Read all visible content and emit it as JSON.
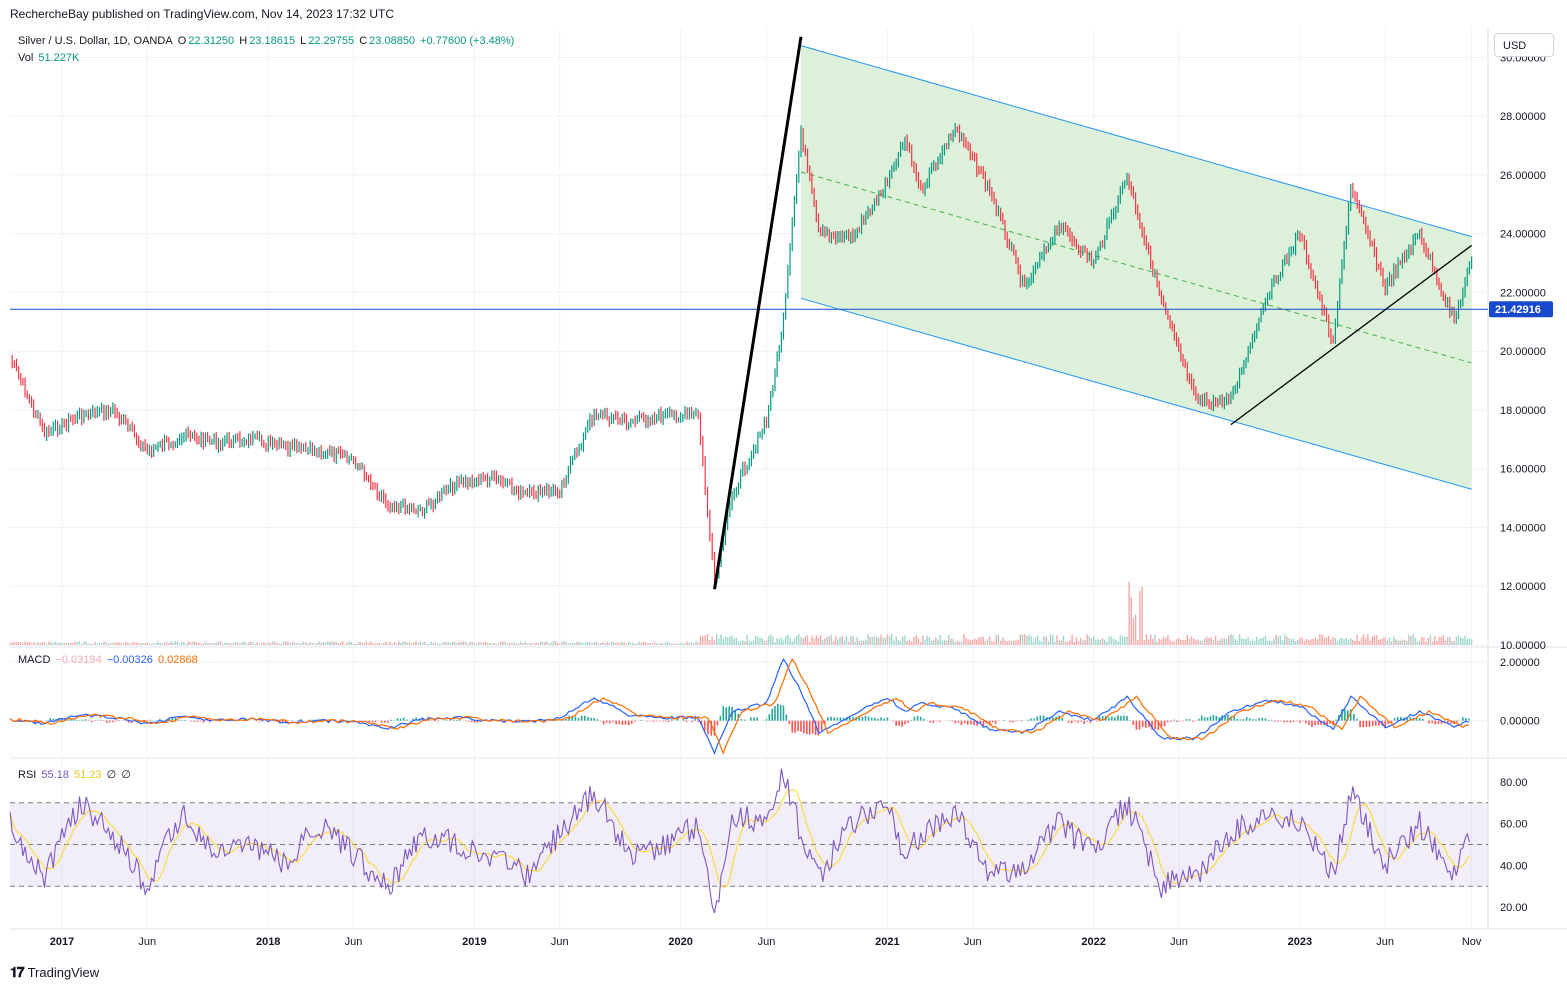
{
  "header": {
    "published": "RechercheBay published on TradingView.com, Nov 14, 2023 17:32 UTC"
  },
  "legend": {
    "symbol": "Silver / U.S. Dollar, 1D, OANDA",
    "o_label": "O",
    "o_value": "22.31250",
    "h_label": "H",
    "h_value": "23.18615",
    "l_label": "L",
    "l_value": "22.29755",
    "c_label": "C",
    "c_value": "23.08850",
    "change": "+0.77600 (+3.48%)",
    "vol_label": "Vol",
    "vol_value": "51.227K"
  },
  "macd_legend": {
    "label": "MACD",
    "v1": "−0.03194",
    "v2": "−0.00326",
    "v3": "0.02868"
  },
  "rsi_legend": {
    "label": "RSI",
    "v1": "55.18",
    "v2": "51.23",
    "v3": "∅",
    "v4": "∅"
  },
  "currency_button": "USD",
  "last_price_tag": "21.42916",
  "brand": "TradingView",
  "colors": {
    "up": "#089981",
    "down": "#f23645",
    "channel_fill": "#d6edd3",
    "channel_line": "#2196f3",
    "macd": "#2962ff",
    "signal": "#ff6d00",
    "rsi": "#7e57c2",
    "rsi_ma": "#fdd835"
  },
  "chart_data": [
    {
      "type": "line",
      "title": "Silver / U.S. Dollar, 1D, OANDA",
      "ylim": [
        10,
        31
      ],
      "y_ticks": [
        "30.00000",
        "28.00000",
        "26.00000",
        "24.00000",
        "22.00000",
        "20.00000",
        "18.00000",
        "16.00000",
        "14.00000",
        "12.00000",
        "10.00000"
      ],
      "x_ticks": [
        "2017",
        "Jun",
        "2018",
        "Jun",
        "2019",
        "Jun",
        "2020",
        "Jun",
        "2021",
        "Jun",
        "2022",
        "Jun",
        "2023",
        "Jun",
        "Nov"
      ],
      "series": [
        {
          "values_x": [
            "2016-10",
            "2016-12",
            "2017-02",
            "2017-04",
            "2017-06",
            "2017-08",
            "2017-10",
            "2017-12",
            "2018-02",
            "2018-04",
            "2018-06",
            "2018-08",
            "2018-10",
            "2018-12",
            "2019-02",
            "2019-04",
            "2019-06",
            "2019-08",
            "2019-10",
            "2019-12",
            "2020-02",
            "2020-03",
            "2020-04",
            "2020-06",
            "2020-07",
            "2020-08",
            "2020-09",
            "2020-11",
            "2021-01",
            "2021-02",
            "2021-03",
            "2021-05",
            "2021-07",
            "2021-09",
            "2021-11",
            "2022-01",
            "2022-03",
            "2022-05",
            "2022-07",
            "2022-09",
            "2022-11",
            "2023-01",
            "2023-03",
            "2023-04",
            "2023-06",
            "2023-08",
            "2023-10",
            "2023-11"
          ],
          "values": [
            19.8,
            17.2,
            17.8,
            18.0,
            16.6,
            17.1,
            16.9,
            17.0,
            16.7,
            16.6,
            16.3,
            14.8,
            14.6,
            15.5,
            15.7,
            15.1,
            15.3,
            17.9,
            17.6,
            17.8,
            17.8,
            12.0,
            15.1,
            17.6,
            21.0,
            27.5,
            24.0,
            23.9,
            25.7,
            27.2,
            25.5,
            27.6,
            25.5,
            22.1,
            24.3,
            23.0,
            26.0,
            21.7,
            18.3,
            18.3,
            21.8,
            24.0,
            20.2,
            25.6,
            22.2,
            24.0,
            21.0,
            23.1
          ]
        }
      ],
      "horizontal_line": 21.42916,
      "channel_upper": [
        {
          "x": "2020-08",
          "y": 30.4
        },
        {
          "x": "2023-11",
          "y": 23.9
        }
      ],
      "channel_lower": [
        {
          "x": "2020-08",
          "y": 21.8
        },
        {
          "x": "2023-11",
          "y": 15.3
        }
      ],
      "trend_line_1": [
        {
          "x": "2020-03",
          "y": 11.9
        },
        {
          "x": "2020-08",
          "y": 30.7
        }
      ],
      "trend_line_2": [
        {
          "x": "2022-09",
          "y": 17.5
        },
        {
          "x": "2023-11",
          "y": 23.6
        }
      ]
    },
    {
      "type": "line",
      "title": "MACD",
      "y_ticks": [
        "2.00000",
        "0.00000"
      ],
      "ylim": [
        -1.2,
        2.4
      ],
      "series": [
        {
          "name": "MACD",
          "values": [
            0.05,
            -0.1,
            0.2,
            0.1,
            -0.1,
            0.15,
            0.0,
            0.05,
            -0.05,
            0.0,
            -0.05,
            -0.25,
            0.05,
            0.1,
            0.0,
            -0.05,
            0.1,
            0.8,
            0.2,
            0.1,
            0.1,
            -1.1,
            0.3,
            0.6,
            2.1,
            1.0,
            -0.4,
            0.2,
            0.8,
            0.3,
            0.6,
            0.4,
            -0.3,
            -0.4,
            0.3,
            0.0,
            0.8,
            -0.6,
            -0.6,
            0.3,
            0.7,
            0.5,
            -0.3,
            0.8,
            -0.2,
            0.3,
            -0.2,
            0.0
          ]
        }
      ]
    },
    {
      "type": "line",
      "title": "RSI",
      "y_ticks": [
        "80.00",
        "60.00",
        "40.00",
        "20.00"
      ],
      "ylim": [
        10,
        90
      ],
      "bands": [
        70,
        50,
        30
      ],
      "series": [
        {
          "name": "RSI",
          "values": [
            60,
            35,
            70,
            55,
            30,
            65,
            45,
            50,
            40,
            60,
            45,
            30,
            55,
            50,
            45,
            35,
            55,
            75,
            45,
            50,
            60,
            15,
            65,
            60,
            85,
            55,
            35,
            60,
            70,
            45,
            55,
            65,
            35,
            40,
            60,
            45,
            70,
            30,
            35,
            55,
            65,
            60,
            35,
            75,
            40,
            60,
            35,
            55
          ]
        }
      ]
    }
  ]
}
